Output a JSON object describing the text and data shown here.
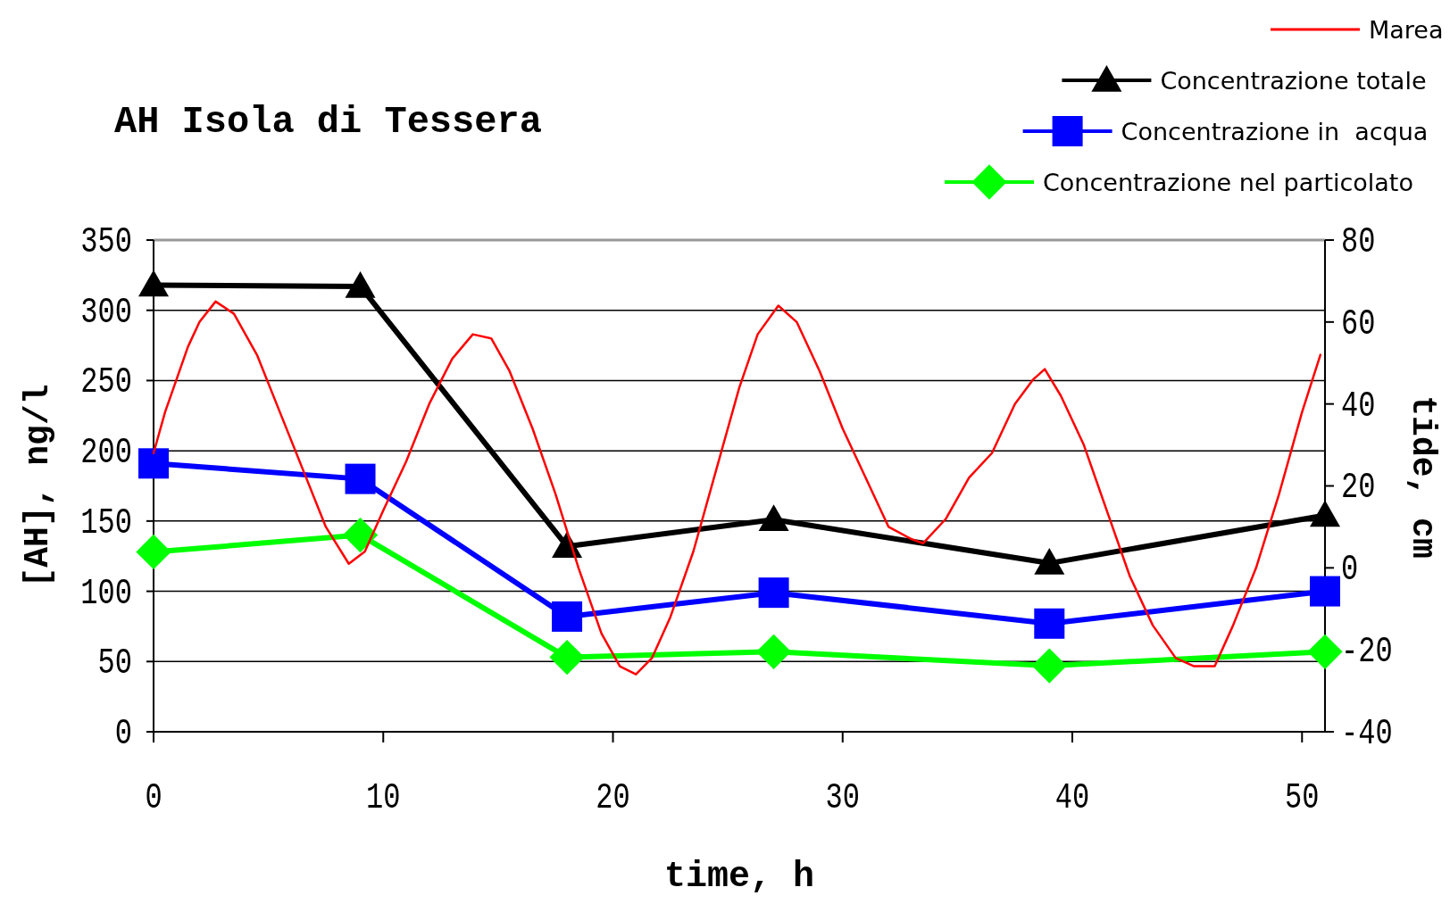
{
  "chart_data": {
    "type": "line",
    "title": "AH Isola di Tessera",
    "xlabel": "time, h",
    "ylabel": "[AH], ng/l",
    "y2label": "tide, cm",
    "xlim": [
      0,
      51
    ],
    "xticks": [
      0,
      10,
      20,
      30,
      40,
      50
    ],
    "ylim": [
      0,
      350
    ],
    "yticks": [
      0,
      50,
      100,
      150,
      200,
      250,
      300,
      350
    ],
    "y2lim": [
      -40,
      80
    ],
    "y2ticks": [
      -40,
      -20,
      0,
      20,
      40,
      60,
      80
    ],
    "grid": "y",
    "legend": "top right",
    "series": [
      {
        "name": "Marea",
        "color": "#ff0000",
        "axis": "y2",
        "marker": "none",
        "x": [
          0,
          0.5,
          1,
          1.5,
          2,
          2.7,
          3.5,
          4.5,
          5.5,
          6.5,
          7.5,
          8.5,
          9.2,
          10,
          11,
          12,
          13,
          13.9,
          14.7,
          15.5,
          16.5,
          17.5,
          18.5,
          19.5,
          20.3,
          21,
          21.7,
          22.5,
          23.5,
          24.5,
          25.5,
          26.3,
          27.2,
          28,
          29,
          30,
          31,
          32,
          33,
          33.5,
          34.5,
          35.5,
          36.5,
          37.5,
          38.3,
          38.8,
          39.5,
          40.5,
          41.5,
          42.5,
          43.5,
          44.5,
          45.3,
          46.2,
          47,
          48,
          49,
          50,
          50.8
        ],
        "values": [
          28,
          38,
          46,
          54,
          60,
          65,
          62,
          52,
          38,
          24,
          10,
          1,
          4,
          14,
          26,
          40,
          51,
          57,
          56,
          48,
          34,
          18,
          0,
          -16,
          -24,
          -26,
          -22,
          -12,
          4,
          24,
          44,
          57,
          64,
          60,
          48,
          34,
          22,
          10,
          7,
          6,
          12,
          22,
          28,
          40,
          46,
          48.5,
          42,
          30,
          14,
          -2,
          -14,
          -22,
          -24,
          -24,
          -14,
          0,
          18,
          38,
          52
        ]
      },
      {
        "name": "Concentrazione totale",
        "color": "#000000",
        "marker": "triangle",
        "x": [
          0,
          9,
          18,
          27,
          39,
          51
        ],
        "values": [
          318,
          317,
          132,
          151,
          120,
          154
        ]
      },
      {
        "name": "Concentrazione in  acqua",
        "color": "#0000ff",
        "marker": "square",
        "x": [
          0,
          9,
          18,
          27,
          39,
          51
        ],
        "values": [
          191,
          180,
          82,
          99,
          77,
          100
        ]
      },
      {
        "name": "Concentrazione nel particolato",
        "color": "#00ff00",
        "marker": "diamond",
        "x": [
          0,
          9,
          18,
          27,
          39,
          51
        ],
        "values": [
          128,
          140,
          53,
          57,
          47,
          57
        ]
      }
    ]
  }
}
